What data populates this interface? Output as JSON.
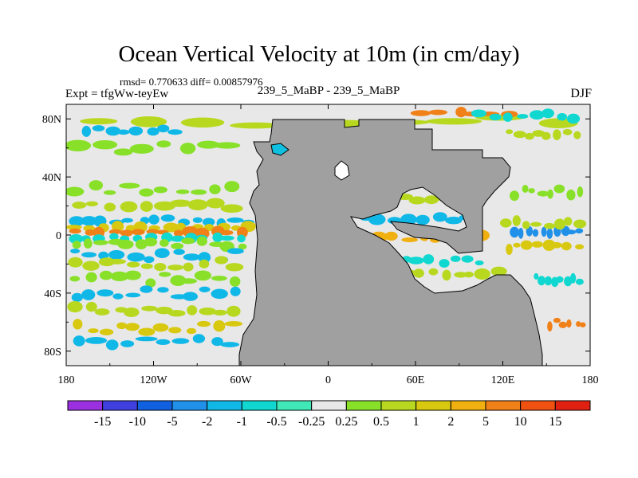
{
  "chart_data": {
    "type": "heatmap",
    "title": "Ocean Vertical Velocity at 10m (in cm/day)",
    "subtitle_left": "rmsd= 0.770633 diff= 0.00857976",
    "left_label": "Expt = tfgWw-teyEw",
    "center_label": "239_5_MaBP - 239_5_MaBP",
    "right_label": "DJF",
    "x_axis": {
      "range": [
        -180,
        180
      ],
      "ticks": [
        -180,
        -120,
        -60,
        0,
        60,
        120,
        180
      ],
      "tick_labels": [
        "180",
        "120W",
        "60W",
        "0",
        "60E",
        "120E",
        "180"
      ]
    },
    "y_axis": {
      "range": [
        -90,
        90
      ],
      "ticks": [
        80,
        40,
        0,
        -40,
        -80
      ],
      "tick_labels": [
        "80N",
        "40N",
        "0",
        "40S",
        "80S"
      ]
    },
    "colorbar": {
      "levels": [
        "-15",
        "-10",
        "-5",
        "-2",
        "-1",
        "-0.5",
        "-0.25",
        "0.25",
        "0.5",
        "1",
        "2",
        "5",
        "10",
        "15"
      ],
      "colors": [
        "#9a30e0",
        "#4040e0",
        "#1060e0",
        "#2090e8",
        "#10b8e8",
        "#10d8d0",
        "#40e8b8",
        "#e8e8e8",
        "#88e028",
        "#b8d820",
        "#d8c810",
        "#f0b010",
        "#f08018",
        "#f05010",
        "#e02010"
      ]
    },
    "colors": {
      "land": "#a0a0a0",
      "ocean_neutral": "#e8e8e8"
    },
    "data_summary": "Ocean vertical velocity difference field; strongest upwelling/downwelling bands along the equator and in the Southern Ocean; supercontinent land mass shaded grey between ~50W and ~120E"
  }
}
